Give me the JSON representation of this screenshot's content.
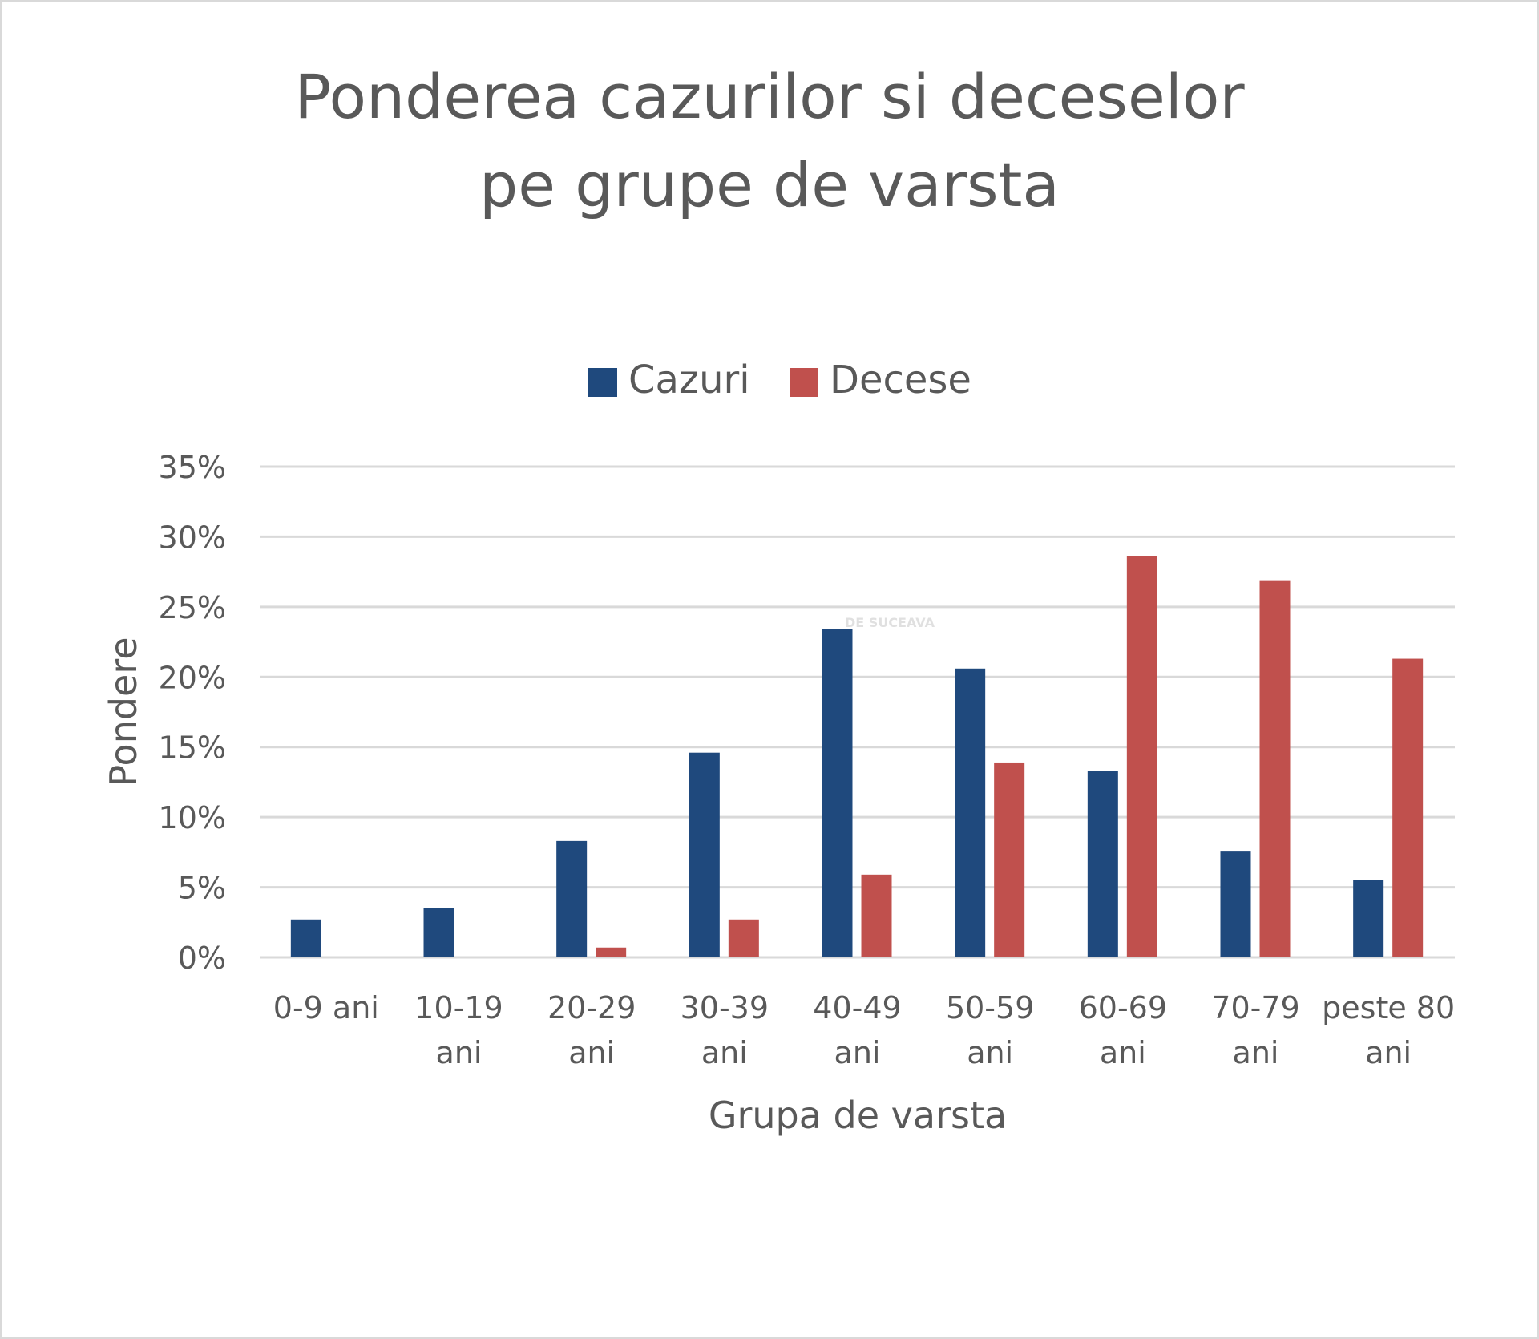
{
  "chart_data": {
    "type": "bar",
    "title": [
      "Ponderea cazurilor si deceselor",
      "pe grupe de varsta"
    ],
    "xlabel": "Grupa de varsta",
    "ylabel": "Pondere",
    "ylim": [
      0,
      35
    ],
    "yticks": [
      0,
      5,
      10,
      15,
      20,
      25,
      30,
      35
    ],
    "ytick_labels": [
      "0%",
      "5%",
      "10%",
      "15%",
      "20%",
      "25%",
      "30%",
      "35%"
    ],
    "grid": true,
    "legend_position": "top",
    "categories": [
      [
        "0-9 ani"
      ],
      [
        "10-19",
        "ani"
      ],
      [
        "20-29",
        "ani"
      ],
      [
        "30-39",
        "ani"
      ],
      [
        "40-49",
        "ani"
      ],
      [
        "50-59",
        "ani"
      ],
      [
        "60-69",
        "ani"
      ],
      [
        "70-79",
        "ani"
      ],
      [
        "peste 80",
        "ani"
      ]
    ],
    "series": [
      {
        "name": "Cazuri",
        "color": "#1f497d",
        "values": [
          2.7,
          3.5,
          8.3,
          14.6,
          23.4,
          20.6,
          13.3,
          7.6,
          5.5
        ]
      },
      {
        "name": "Decese",
        "color": "#c0504d",
        "values": [
          0,
          0,
          0.7,
          2.7,
          5.9,
          13.9,
          28.6,
          26.9,
          21.3
        ]
      }
    ],
    "watermark": "DE SUCEAVA"
  }
}
